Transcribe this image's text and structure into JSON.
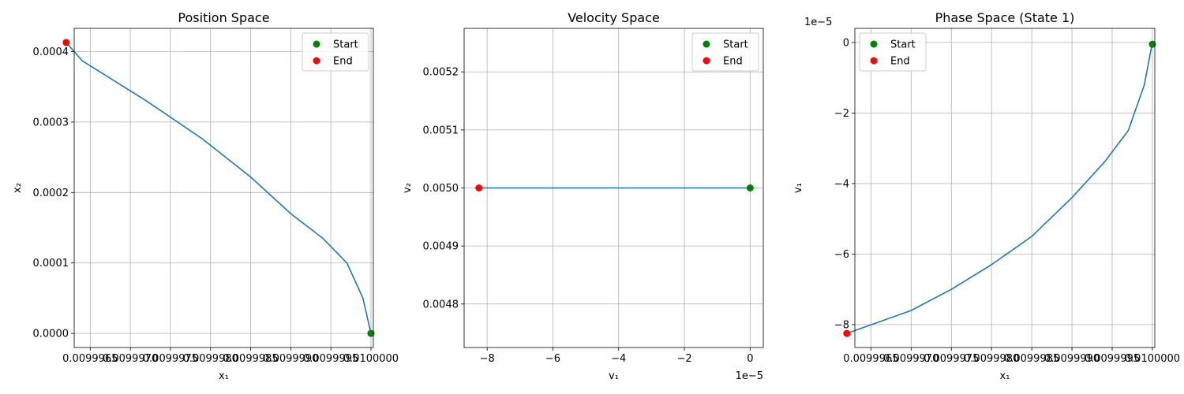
{
  "chart_data": [
    {
      "type": "line",
      "title": "Position Space",
      "xlabel": "x₁",
      "ylabel": "x₂",
      "grid": true,
      "legend_placement": "top-right",
      "xlim": [
        0.0099963,
        0.01000003
      ],
      "ylim": [
        -2e-05,
        0.000433
      ],
      "xticks": [
        0.0099965,
        0.009997,
        0.0099975,
        0.009998,
        0.0099985,
        0.009999,
        0.0099995,
        0.01
      ],
      "xtick_labels": [
        "0.0099965",
        "0.0099970",
        "0.0099975",
        "0.0099980",
        "0.0099985",
        "0.0099990",
        "0.0099995",
        "0.0100000"
      ],
      "yticks": [
        0,
        0.0001,
        0.0002,
        0.0003,
        0.0004
      ],
      "ytick_labels": [
        "0.0000",
        "0.0001",
        "0.0002",
        "0.0003",
        "0.0004"
      ],
      "series": [
        {
          "name": "",
          "color": "#1f77b4",
          "x": [
            0.01,
            0.0099999,
            0.0099997,
            0.0099994,
            0.009999,
            0.0099985,
            0.0099979,
            0.0099972,
            0.0099964,
            0.0099962
          ],
          "y": [
            0,
            5e-05,
            0.0001,
            0.000135,
            0.00017,
            0.000222,
            0.000276,
            0.00033,
            0.000387,
            0.000413
          ]
        }
      ],
      "markers": [
        {
          "name": "Start",
          "color": "#008000",
          "x": 0.01,
          "y": 0
        },
        {
          "name": "End",
          "color": "#ff0000",
          "x": 0.0099962,
          "y": 0.000413
        }
      ],
      "legend": [
        {
          "label": "Start",
          "color": "#008000"
        },
        {
          "label": "End",
          "color": "#ff0000"
        }
      ]
    },
    {
      "type": "line",
      "title": "Velocity Space",
      "xlabel": "v₁",
      "ylabel": "v₂",
      "x_offset_label": "1e−5",
      "grid": true,
      "legend_placement": "top-right",
      "xlim": [
        -8.7,
        0.4
      ],
      "ylim": [
        0.004725,
        0.005275
      ],
      "xticks": [
        -8,
        -6,
        -4,
        -2,
        0
      ],
      "xtick_labels": [
        "−8",
        "−6",
        "−4",
        "−2",
        "0"
      ],
      "yticks": [
        0.0048,
        0.0049,
        0.005,
        0.0051,
        0.0052
      ],
      "ytick_labels": [
        "0.0048",
        "0.0049",
        "0.0050",
        "0.0051",
        "0.0052"
      ],
      "series": [
        {
          "name": "",
          "color": "#1f77b4",
          "x": [
            -8.25,
            -6,
            -4,
            -2,
            0
          ],
          "y": [
            0.005,
            0.005,
            0.005,
            0.005,
            0.005
          ]
        }
      ],
      "markers": [
        {
          "name": "Start",
          "color": "#008000",
          "x": 0,
          "y": 0.005
        },
        {
          "name": "End",
          "color": "#ff0000",
          "x": -8.25,
          "y": 0.005
        }
      ],
      "legend": [
        {
          "label": "Start",
          "color": "#008000"
        },
        {
          "label": "End",
          "color": "#ff0000"
        }
      ]
    },
    {
      "type": "line",
      "title": "Phase Space (State 1)",
      "xlabel": "x₁",
      "ylabel": "v₁",
      "y_offset_label": "1e−5",
      "grid": true,
      "legend_placement": "top-left",
      "xlim": [
        0.0099963,
        0.01000003
      ],
      "ylim": [
        -8.65,
        0.4
      ],
      "xticks": [
        0.0099965,
        0.009997,
        0.0099975,
        0.009998,
        0.0099985,
        0.009999,
        0.0099995,
        0.01
      ],
      "xtick_labels": [
        "0.0099965",
        "0.0099970",
        "0.0099975",
        "0.0099980",
        "0.0099985",
        "0.0099990",
        "0.0099995",
        "0.0100000"
      ],
      "yticks": [
        -8,
        -6,
        -4,
        -2,
        0
      ],
      "ytick_labels": [
        "−8",
        "−6",
        "−4",
        "−2",
        "0"
      ],
      "series": [
        {
          "name": "",
          "color": "#1f77b4",
          "x": [
            0.01,
            0.0099999,
            0.0099997,
            0.0099994,
            0.009999,
            0.0099985,
            0.009998,
            0.0099975,
            0.009997,
            0.0099962
          ],
          "y": [
            0,
            -1.2,
            -2.5,
            -3.4,
            -4.4,
            -5.5,
            -6.3,
            -7,
            -7.6,
            -8.25
          ]
        }
      ],
      "markers": [
        {
          "name": "Start",
          "color": "#008000",
          "x": 0.01,
          "y": -0.05
        },
        {
          "name": "End",
          "color": "#ff0000",
          "x": 0.0099962,
          "y": -8.25
        }
      ],
      "legend": [
        {
          "label": "Start",
          "color": "#008000"
        },
        {
          "label": "End",
          "color": "#ff0000"
        }
      ]
    }
  ]
}
